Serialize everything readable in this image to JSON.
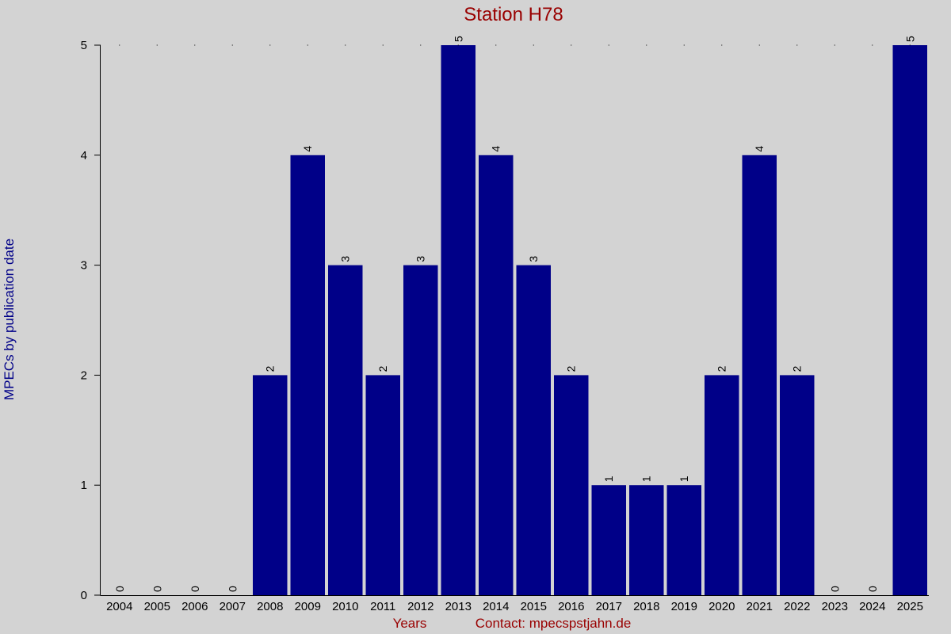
{
  "chart_data": {
    "type": "bar",
    "title": "Station H78",
    "xlabel": "Years",
    "ylabel": "MPECs by publication date",
    "contact": "Contact: mpecspstjahn.de",
    "categories": [
      "2004",
      "2005",
      "2006",
      "2007",
      "2008",
      "2009",
      "2010",
      "2011",
      "2012",
      "2013",
      "2014",
      "2015",
      "2016",
      "2017",
      "2018",
      "2019",
      "2020",
      "2021",
      "2022",
      "2023",
      "2024",
      "2025"
    ],
    "values": [
      0,
      0,
      0,
      0,
      2,
      4,
      3,
      2,
      3,
      5,
      4,
      3,
      2,
      1,
      1,
      1,
      2,
      4,
      2,
      0,
      0,
      5
    ],
    "ylim": [
      0,
      5
    ],
    "yticks": [
      0,
      1,
      2,
      3,
      4,
      5
    ],
    "bar_color": "#000088",
    "background": "#d3d3d3",
    "title_color": "#990000",
    "ylabel_color": "#000088",
    "legend": "none",
    "grid": false
  }
}
